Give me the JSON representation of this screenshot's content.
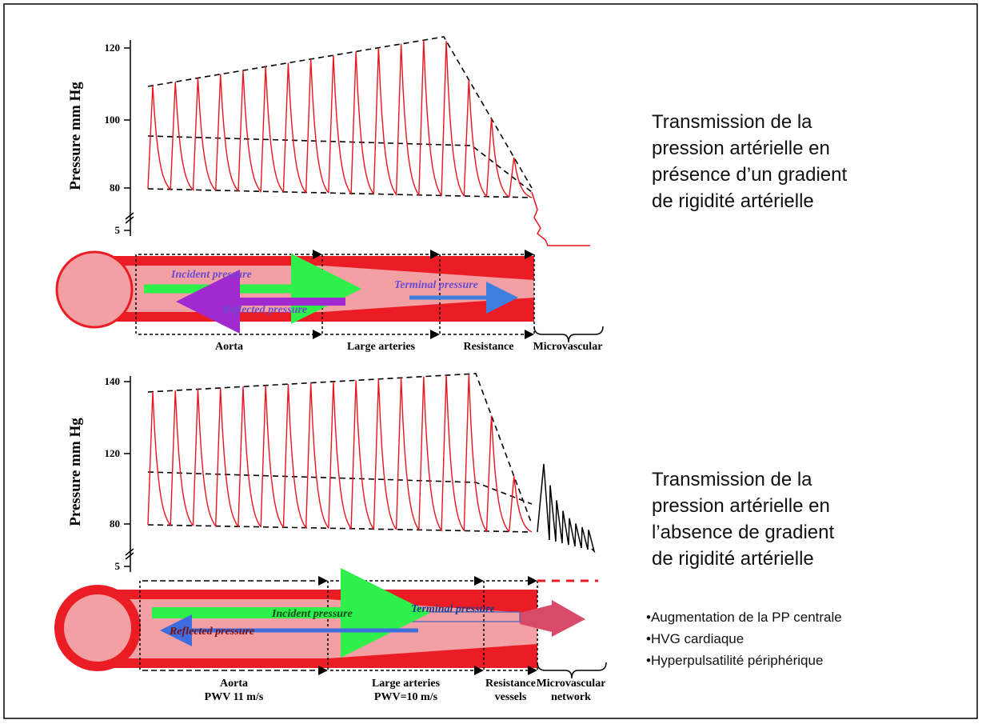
{
  "panels": [
    {
      "y_axis_label": "Pressure mm Hg",
      "y_ticks": [
        120,
        100,
        80,
        5
      ],
      "incident": "Incident pressure",
      "reflected": "Reflected pressure",
      "terminal": "Terminal pressure",
      "segments": [
        [
          "Aorta"
        ],
        [
          "Large arteries"
        ],
        [
          "Resistance"
        ],
        [
          "Microvascular"
        ]
      ],
      "caption": [
        "Transmission de la",
        "pression artérielle en",
        "présence d’un gradient",
        "de rigidité artérielle"
      ]
    },
    {
      "y_axis_label": "Pressure mm Hg",
      "y_ticks": [
        140,
        120,
        80,
        5
      ],
      "incident": "Incident pressure",
      "reflected": "Reflected pressure",
      "terminal": "Terminal pressure",
      "segments": [
        [
          "Aorta",
          "PWV 11 m/s"
        ],
        [
          "Large arteries",
          "PWV=10 m/s"
        ],
        [
          "Resistance",
          "vessels"
        ],
        [
          "Microvascular",
          "network"
        ]
      ],
      "caption": [
        "Transmission de la",
        "pression artérielle en",
        "l’absence de gradient",
        "de rigidité artérielle"
      ]
    }
  ],
  "bullets": [
    "•Augmentation de la PP centrale",
    "•HVG cardiaque",
    "•Hyperpulsatilité périphérique"
  ]
}
